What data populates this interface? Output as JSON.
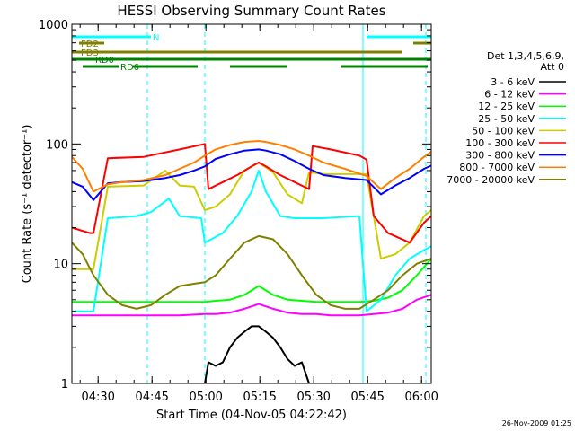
{
  "chart_data": {
    "type": "line",
    "title": "HESSI Observing Summary Count Rates",
    "xlabel": "Start Time (04-Nov-05 04:22:42)",
    "ylabel": "Count Rate (s⁻¹ detector⁻¹)",
    "x_unit": "minutes after 04:22:42",
    "xlim": [
      0,
      100
    ],
    "ylim": [
      1,
      1000
    ],
    "yscale": "log",
    "x_ticks": [
      {
        "label": "04:30",
        "value": 7.3
      },
      {
        "label": "04:45",
        "value": 22.3
      },
      {
        "label": "05:00",
        "value": 37.3
      },
      {
        "label": "05:15",
        "value": 52.3
      },
      {
        "label": "05:30",
        "value": 67.3
      },
      {
        "label": "05:45",
        "value": 82.3
      },
      {
        "label": "06:00",
        "value": 97.3
      }
    ],
    "y_ticks": [
      {
        "label": "1",
        "value": 1
      },
      {
        "label": "10",
        "value": 10
      },
      {
        "label": "100",
        "value": 100
      },
      {
        "label": "1000",
        "value": 1000
      }
    ],
    "legend": {
      "title_lines": [
        "Det 1,3,4,5,6,9,",
        "Att 0"
      ],
      "placement": "right"
    },
    "series": [
      {
        "name": "3 - 6 keV",
        "color": "#000000",
        "x": [
          37,
          38,
          40,
          42,
          44,
          46,
          48,
          50,
          52,
          54,
          56,
          58,
          60,
          62,
          64,
          66
        ],
        "y": [
          1,
          1.5,
          1.4,
          1.5,
          2.0,
          2.4,
          2.7,
          3.0,
          3.0,
          2.7,
          2.4,
          2.0,
          1.6,
          1.4,
          1.5,
          1
        ]
      },
      {
        "name": "6 - 12 keV",
        "color": "#ff00ff",
        "x": [
          0,
          10,
          20,
          30,
          37,
          40,
          44,
          48,
          52,
          56,
          60,
          64,
          68,
          72,
          80,
          84,
          88,
          92,
          96,
          100
        ],
        "y": [
          3.7,
          3.7,
          3.7,
          3.7,
          3.8,
          3.8,
          3.9,
          4.2,
          4.6,
          4.2,
          3.9,
          3.8,
          3.8,
          3.7,
          3.7,
          3.8,
          3.9,
          4.2,
          5.0,
          5.5
        ]
      },
      {
        "name": "12 - 25 keV",
        "color": "#00ff00",
        "x": [
          0,
          10,
          20,
          30,
          37,
          40,
          44,
          48,
          52,
          56,
          60,
          64,
          68,
          72,
          80,
          84,
          88,
          92,
          96,
          100
        ],
        "y": [
          4.8,
          4.8,
          4.8,
          4.8,
          4.8,
          4.9,
          5.0,
          5.5,
          6.5,
          5.5,
          5.0,
          4.9,
          4.8,
          4.8,
          4.8,
          4.9,
          5.2,
          6.0,
          8.0,
          11.0
        ]
      },
      {
        "name": "25 - 50 keV",
        "color": "#00ffff",
        "x": [
          0,
          6,
          10,
          18,
          22,
          27,
          30,
          36,
          37,
          42,
          46,
          50,
          52,
          54,
          58,
          62,
          66,
          70,
          80,
          82,
          86,
          90,
          94,
          98,
          100
        ],
        "y": [
          4.0,
          4.0,
          24,
          25,
          27,
          35,
          25,
          24,
          15,
          18,
          25,
          40,
          60,
          40,
          25,
          24,
          24,
          24,
          25,
          4.0,
          5.0,
          8.0,
          11,
          13,
          14
        ]
      },
      {
        "name": "50 - 100 keV",
        "color": "#cccc00",
        "x": [
          0,
          6,
          10,
          20,
          26,
          30,
          34,
          37,
          40,
          44,
          48,
          52,
          56,
          60,
          64,
          66,
          70,
          76,
          82,
          86,
          90,
          94,
          98,
          100
        ],
        "y": [
          9,
          9,
          44,
          45,
          60,
          45,
          44,
          28,
          30,
          38,
          60,
          70,
          58,
          38,
          32,
          58,
          56,
          56,
          56,
          11,
          12,
          15,
          25,
          28
        ]
      },
      {
        "name": "100 - 300 keV",
        "color": "#ff0000",
        "x": [
          0,
          5,
          6,
          10,
          20,
          30,
          37,
          38,
          42,
          46,
          50,
          52,
          54,
          58,
          62,
          66,
          67,
          72,
          80,
          82,
          84,
          88,
          94,
          98,
          100
        ],
        "y": [
          20,
          18,
          18,
          76,
          78,
          90,
          100,
          42,
          48,
          55,
          65,
          70,
          65,
          55,
          48,
          42,
          96,
          90,
          80,
          74,
          25,
          18,
          15,
          22,
          25
        ]
      },
      {
        "name": "300 - 800 keV",
        "color": "#0000ff",
        "x": [
          0,
          3,
          6,
          10,
          14,
          20,
          26,
          30,
          34,
          37,
          40,
          44,
          48,
          52,
          54,
          58,
          62,
          66,
          70,
          76,
          82,
          86,
          90,
          94,
          98,
          100
        ],
        "y": [
          48,
          44,
          34,
          47,
          48,
          49,
          52,
          55,
          60,
          65,
          75,
          82,
          88,
          90,
          88,
          82,
          72,
          62,
          55,
          52,
          50,
          38,
          45,
          52,
          62,
          66
        ]
      },
      {
        "name": "800 - 7000 keV",
        "color": "#ff8000",
        "x": [
          0,
          3,
          6,
          10,
          14,
          20,
          26,
          30,
          34,
          37,
          40,
          44,
          48,
          52,
          54,
          58,
          62,
          66,
          70,
          76,
          82,
          86,
          90,
          94,
          98,
          100
        ],
        "y": [
          78,
          62,
          40,
          46,
          48,
          50,
          55,
          62,
          70,
          80,
          90,
          98,
          104,
          106,
          104,
          98,
          90,
          80,
          70,
          62,
          54,
          42,
          52,
          62,
          78,
          86
        ]
      },
      {
        "name": "7000 - 20000 keV",
        "color": "#808000",
        "x": [
          0,
          3,
          6,
          10,
          14,
          18,
          22,
          26,
          30,
          34,
          37,
          40,
          44,
          48,
          52,
          56,
          60,
          64,
          68,
          72,
          76,
          80,
          84,
          88,
          92,
          96,
          100
        ],
        "y": [
          15,
          12,
          8,
          5.5,
          4.5,
          4.2,
          4.5,
          5.5,
          6.5,
          6.8,
          7.0,
          8,
          11,
          15,
          17,
          16,
          12,
          8,
          5.5,
          4.5,
          4.2,
          4.2,
          5,
          6,
          8,
          10,
          11
        ]
      }
    ],
    "flags": [
      {
        "name": "N",
        "color": "#00ffff",
        "segments": [
          [
            0,
            22
          ]
        ],
        "label_at": 22
      },
      {
        "name": "",
        "color": "#00ffff",
        "segments": [
          [
            82,
            100
          ]
        ]
      },
      {
        "name": "FD2",
        "color": "#808000",
        "segments": [
          [
            2,
            9
          ],
          [
            95,
            100
          ]
        ],
        "label_at": 2
      },
      {
        "name": "FD3",
        "color": "#808000",
        "segments": [
          [
            0,
            92
          ]
        ],
        "label_at": 2
      },
      {
        "name": "RD0",
        "color": "#008000",
        "segments": [
          [
            0,
            100
          ]
        ],
        "label_at": 6
      },
      {
        "name": "RD6",
        "color": "#008000",
        "segments": [
          [
            3,
            13
          ],
          [
            17,
            35
          ],
          [
            44,
            60
          ],
          [
            75,
            99
          ]
        ],
        "label_at": 13
      }
    ],
    "vlines": [
      {
        "x": 0,
        "color": "#00ffff",
        "style": "solid"
      },
      {
        "x": 21,
        "color": "#00ffff",
        "style": "dashed"
      },
      {
        "x": 37,
        "color": "#00ffff",
        "style": "dashed"
      },
      {
        "x": 81,
        "color": "#00ffff",
        "style": "solid"
      },
      {
        "x": 98.5,
        "color": "#00ffff",
        "style": "dashed"
      }
    ]
  },
  "footer": {
    "timestamp": "26-Nov-2009 01:25"
  }
}
